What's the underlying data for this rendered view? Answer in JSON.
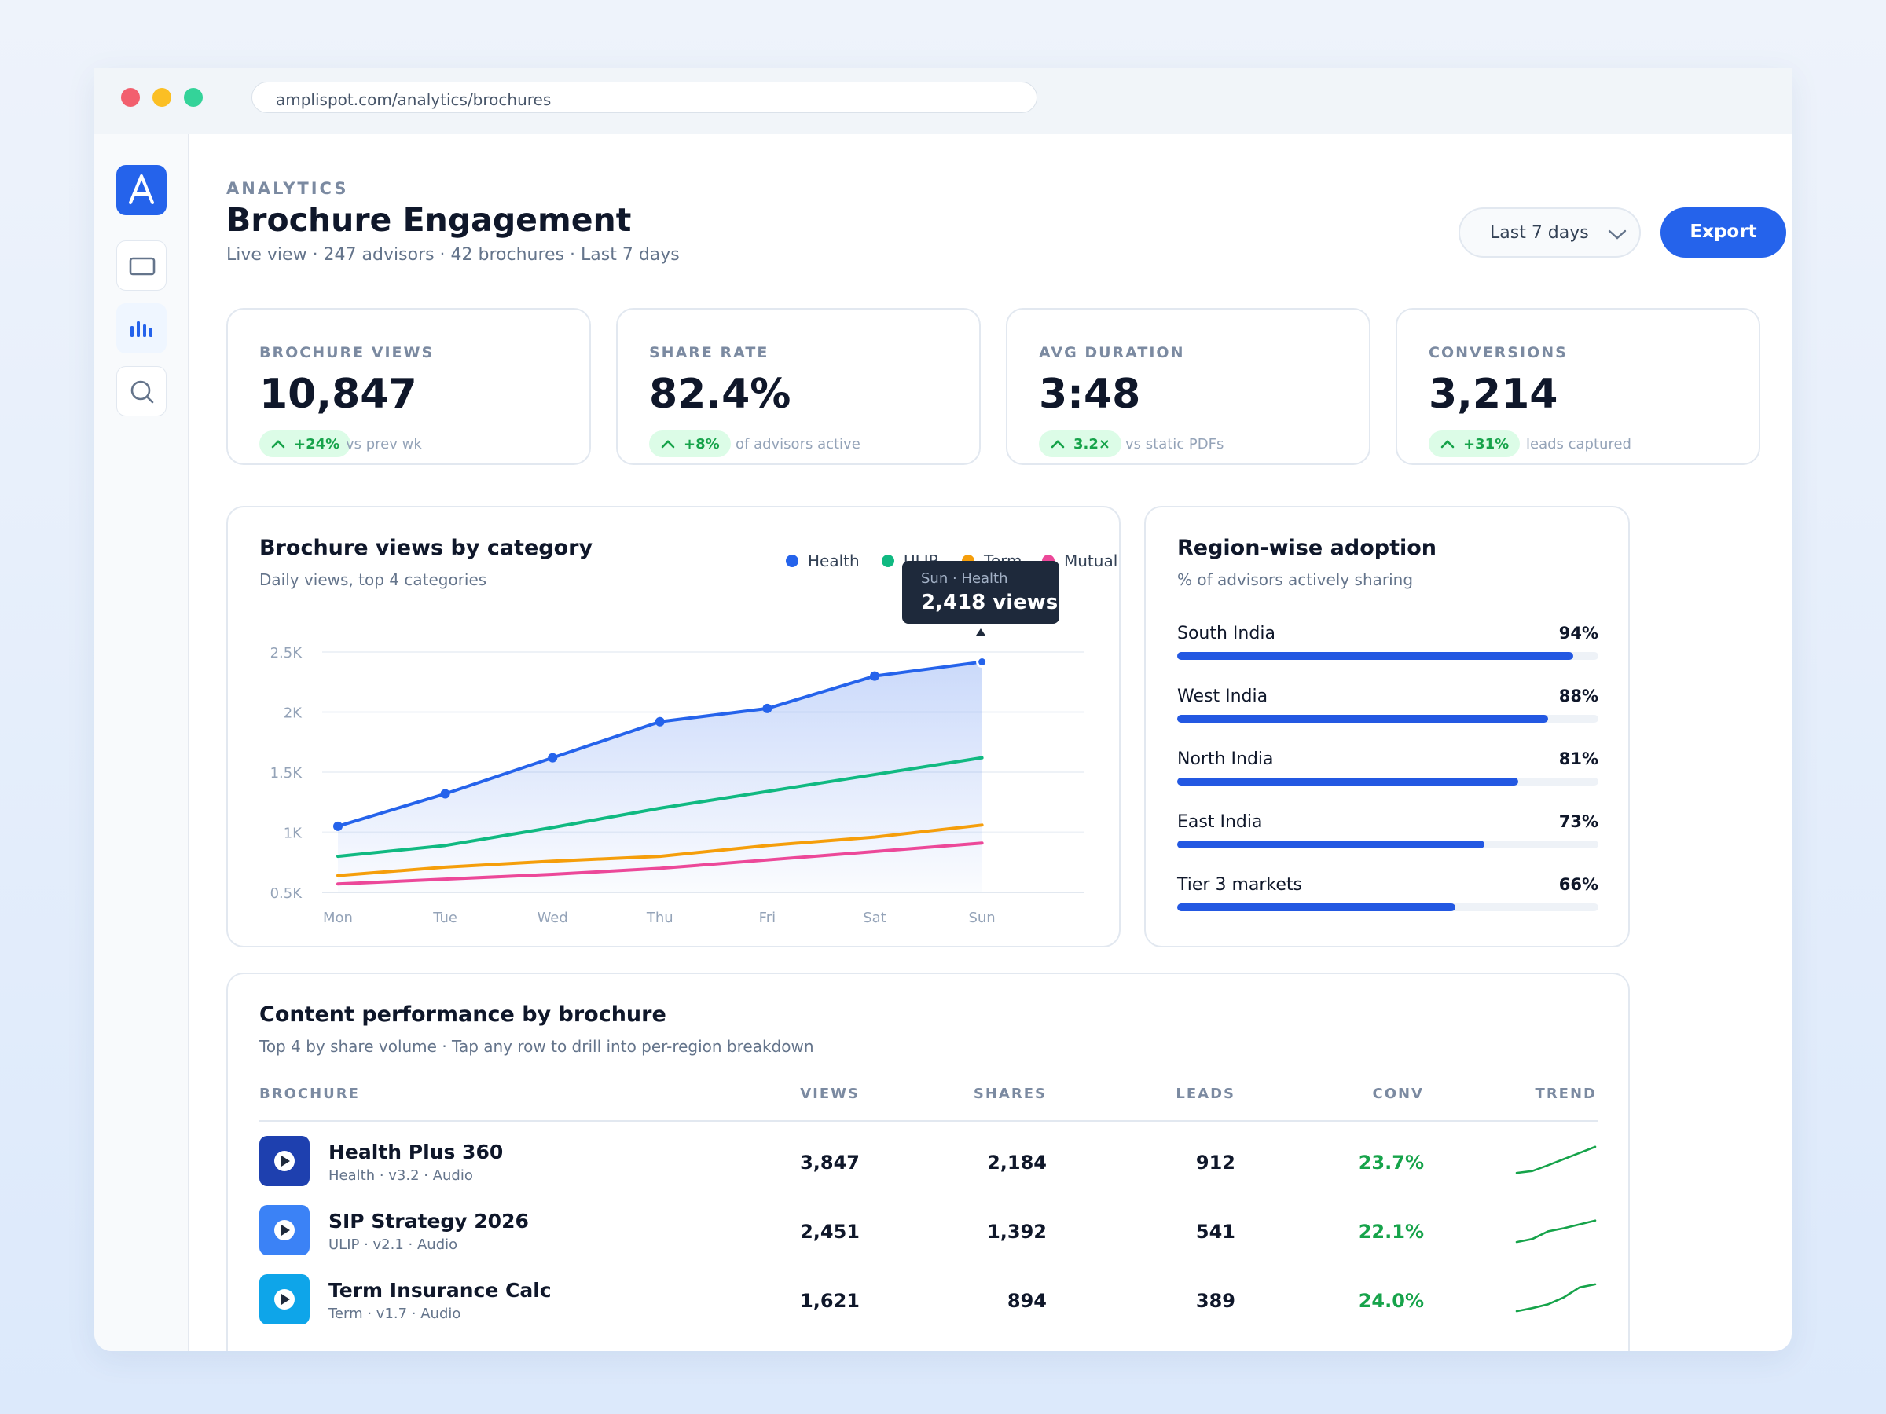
{
  "browser": {
    "url": "amplispot.com/analytics/brochures"
  },
  "sidebar": {
    "logo_letter": "A"
  },
  "header": {
    "kicker": "ANALYTICS",
    "title": "Brochure Engagement",
    "subtitle": "Live view · 247 advisors · 42 brochures · Last 7 days",
    "range_label": "Last 7 days",
    "export_label": "Export"
  },
  "kpis": [
    {
      "label": "BROCHURE VIEWS",
      "value": "10,847",
      "delta": "+24%",
      "note": "vs prev wk"
    },
    {
      "label": "SHARE RATE",
      "value": "82.4%",
      "delta": "+8%",
      "note": "of advisors active"
    },
    {
      "label": "AVG DURATION",
      "value": "3:48",
      "delta": "3.2×",
      "note": "vs static PDFs"
    },
    {
      "label": "CONVERSIONS",
      "value": "3,214",
      "delta": "+31%",
      "note": "leads captured"
    }
  ],
  "chart_card": {
    "title": "Brochure views by category",
    "subtitle": "Daily views, top 4 categories",
    "tooltip": {
      "label": "Sun · Health",
      "value": "2,418 views"
    }
  },
  "chart_data": {
    "type": "line",
    "categories": [
      "Mon",
      "Tue",
      "Wed",
      "Thu",
      "Fri",
      "Sat",
      "Sun"
    ],
    "y_ticks": [
      "0.5K",
      "1K",
      "1.5K",
      "2K",
      "2.5K"
    ],
    "ylim": [
      500,
      2500
    ],
    "series": [
      {
        "name": "Health",
        "color": "#2563eb",
        "values": [
          1050,
          1320,
          1620,
          1920,
          2030,
          2300,
          2418
        ]
      },
      {
        "name": "ULIP",
        "color": "#10b981",
        "values": [
          800,
          890,
          1040,
          1200,
          1340,
          1480,
          1620
        ]
      },
      {
        "name": "Term",
        "color": "#f59e0b",
        "values": [
          640,
          710,
          760,
          800,
          890,
          960,
          1060
        ]
      },
      {
        "name": "Mutual",
        "color": "#ec4899",
        "values": [
          570,
          610,
          650,
          700,
          770,
          840,
          910
        ]
      }
    ]
  },
  "region_card": {
    "title": "Region-wise adoption",
    "subtitle": "% of advisors actively sharing",
    "regions": [
      {
        "name": "South India",
        "pct_label": "94%",
        "pct": 94
      },
      {
        "name": "West India",
        "pct_label": "88%",
        "pct": 88
      },
      {
        "name": "North India",
        "pct_label": "81%",
        "pct": 81
      },
      {
        "name": "East India",
        "pct_label": "73%",
        "pct": 73
      },
      {
        "name": "Tier 3 markets",
        "pct_label": "66%",
        "pct": 66
      }
    ]
  },
  "table_card": {
    "title": "Content performance by brochure",
    "subtitle": "Top 4 by share volume · Tap any row to drill into per-region breakdown",
    "headers": {
      "brochure": "BROCHURE",
      "views": "VIEWS",
      "shares": "SHARES",
      "leads": "LEADS",
      "conv": "CONV",
      "trend": "TREND"
    },
    "rows": [
      {
        "name": "Health Plus 360",
        "meta": "Health · v3.2 · Audio",
        "views": "3,847",
        "shares": "2,184",
        "leads": "912",
        "conv": "23.7%",
        "icon_color": "#1e40af",
        "trend": [
          1,
          1.5,
          3,
          4.6,
          6.2,
          7.8
        ]
      },
      {
        "name": "SIP Strategy 2026",
        "meta": "ULIP · v2.1 · Audio",
        "views": "2,451",
        "shares": "1,392",
        "leads": "541",
        "conv": "22.1%",
        "icon_color": "#3b82f6",
        "trend": [
          1,
          1.8,
          3.8,
          4.6,
          5.6,
          6.6
        ]
      },
      {
        "name": "Term Insurance Calc",
        "meta": "Term · v1.7 · Audio",
        "views": "1,621",
        "shares": "894",
        "leads": "389",
        "conv": "24.0%",
        "icon_color": "#0ea5e9",
        "trend": [
          1,
          1.8,
          2.8,
          4.6,
          7.2,
          8
        ]
      }
    ]
  }
}
